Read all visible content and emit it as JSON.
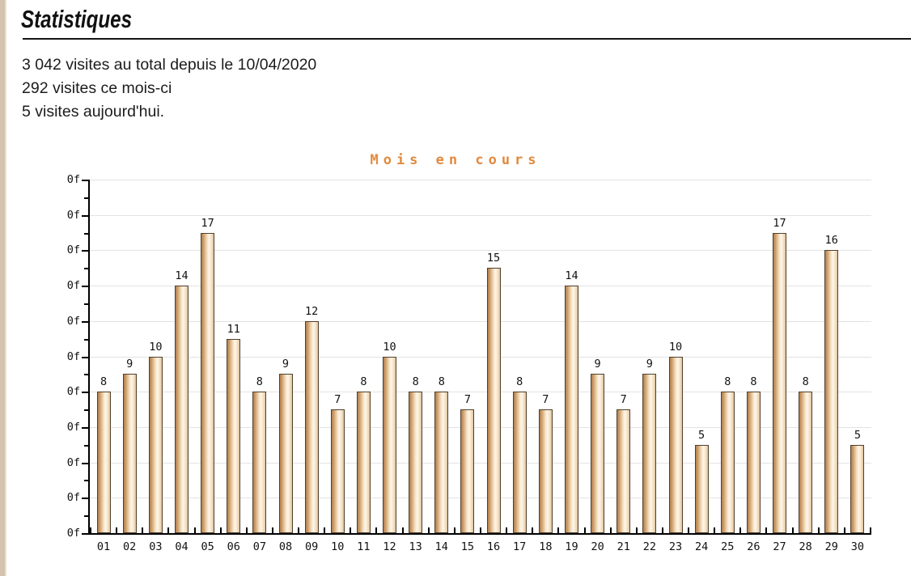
{
  "header": {
    "title": "Statistiques"
  },
  "stats": {
    "lines": [
      "3 042 visites au total depuis le 10/04/2020",
      "292 visites ce mois-ci",
      "5 visites aujourd'hui."
    ]
  },
  "colors": {
    "chart_title_orange": "#e08a3e",
    "bar_fill_light": "#fdf6e9",
    "bar_fill_dark": "#b07f4e",
    "bar_border": "#50402e",
    "gridline": "#e3e3e3",
    "left_strip": "#d3c2ae",
    "axis": "#000000",
    "text": "#1c1c1c"
  },
  "chart_data": {
    "type": "bar",
    "title": "Mois en cours",
    "categories": [
      "01",
      "02",
      "03",
      "04",
      "05",
      "06",
      "07",
      "08",
      "09",
      "10",
      "11",
      "12",
      "13",
      "14",
      "15",
      "16",
      "17",
      "18",
      "19",
      "20",
      "21",
      "22",
      "23",
      "24",
      "25",
      "26",
      "27",
      "28",
      "29",
      "30"
    ],
    "values": [
      8,
      9,
      10,
      14,
      17,
      11,
      8,
      9,
      12,
      7,
      8,
      10,
      8,
      8,
      7,
      15,
      8,
      7,
      14,
      9,
      7,
      9,
      10,
      5,
      8,
      8,
      17,
      8,
      16,
      5
    ],
    "xlabel": "",
    "ylabel": "",
    "ylim": [
      0,
      20
    ],
    "y_major_step": 2,
    "y_minor_step": 1,
    "y_tick_label_text": "0f",
    "grid": "horizontal-major",
    "bar_value_labels": true,
    "legend": "none"
  }
}
